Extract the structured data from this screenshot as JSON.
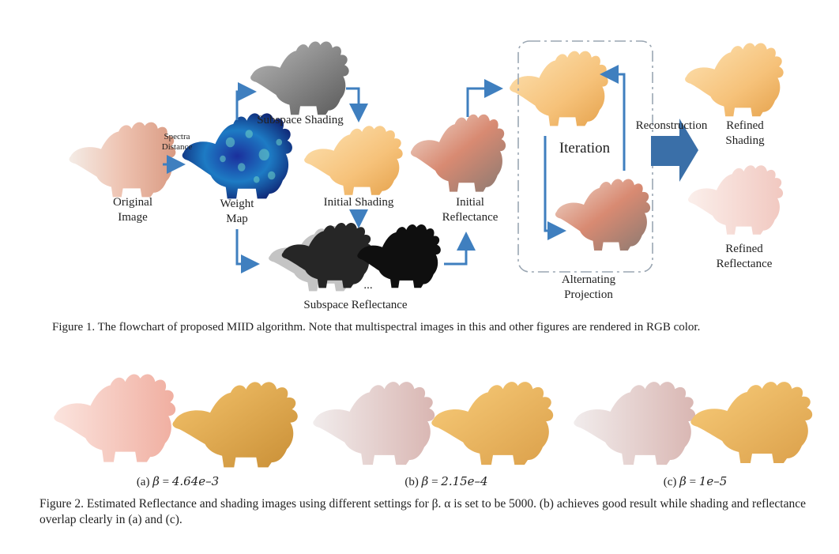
{
  "figure1": {
    "labels": {
      "original_image": "Original\nImage",
      "spectra_distance": "Spectra\nDistance",
      "weight_map": "Weight\nMap",
      "subspace_shading": "Subspace Shading",
      "initial_shading": "Initial Shading",
      "subspace_reflectance": "Subspace Reflectance",
      "ellipsis": "...",
      "initial_reflectance": "Initial\nReflectance",
      "iteration": "Iteration",
      "alternating_projection": "Alternating\nProjection",
      "reconstruction": "Reconstruction",
      "refined_shading": "Refined\nShading",
      "refined_reflectance": "Refined\nReflectance"
    },
    "caption": "Figure 1. The flowchart of proposed MIID algorithm. Note that multispectral images in this and other figures are rendered in RGB color."
  },
  "figure2": {
    "panels": [
      {
        "tag": "(a)",
        "value": "4.64e–3"
      },
      {
        "tag": "(b)",
        "value": "2.15e–4"
      },
      {
        "tag": "(c)",
        "value": "1e–5"
      }
    ],
    "beta_symbol": "β",
    "equals": "=",
    "caption": "Figure 2. Estimated Reflectance and shading images using different settings for β.  α is set to be 5000.  (b) achieves good result while shading and reflectance overlap clearly in (a) and (c)."
  },
  "colors": {
    "arrow": "#3f7fbf",
    "big_arrow": "#3a6fa8",
    "dashed_box": "#9aa6b2"
  }
}
